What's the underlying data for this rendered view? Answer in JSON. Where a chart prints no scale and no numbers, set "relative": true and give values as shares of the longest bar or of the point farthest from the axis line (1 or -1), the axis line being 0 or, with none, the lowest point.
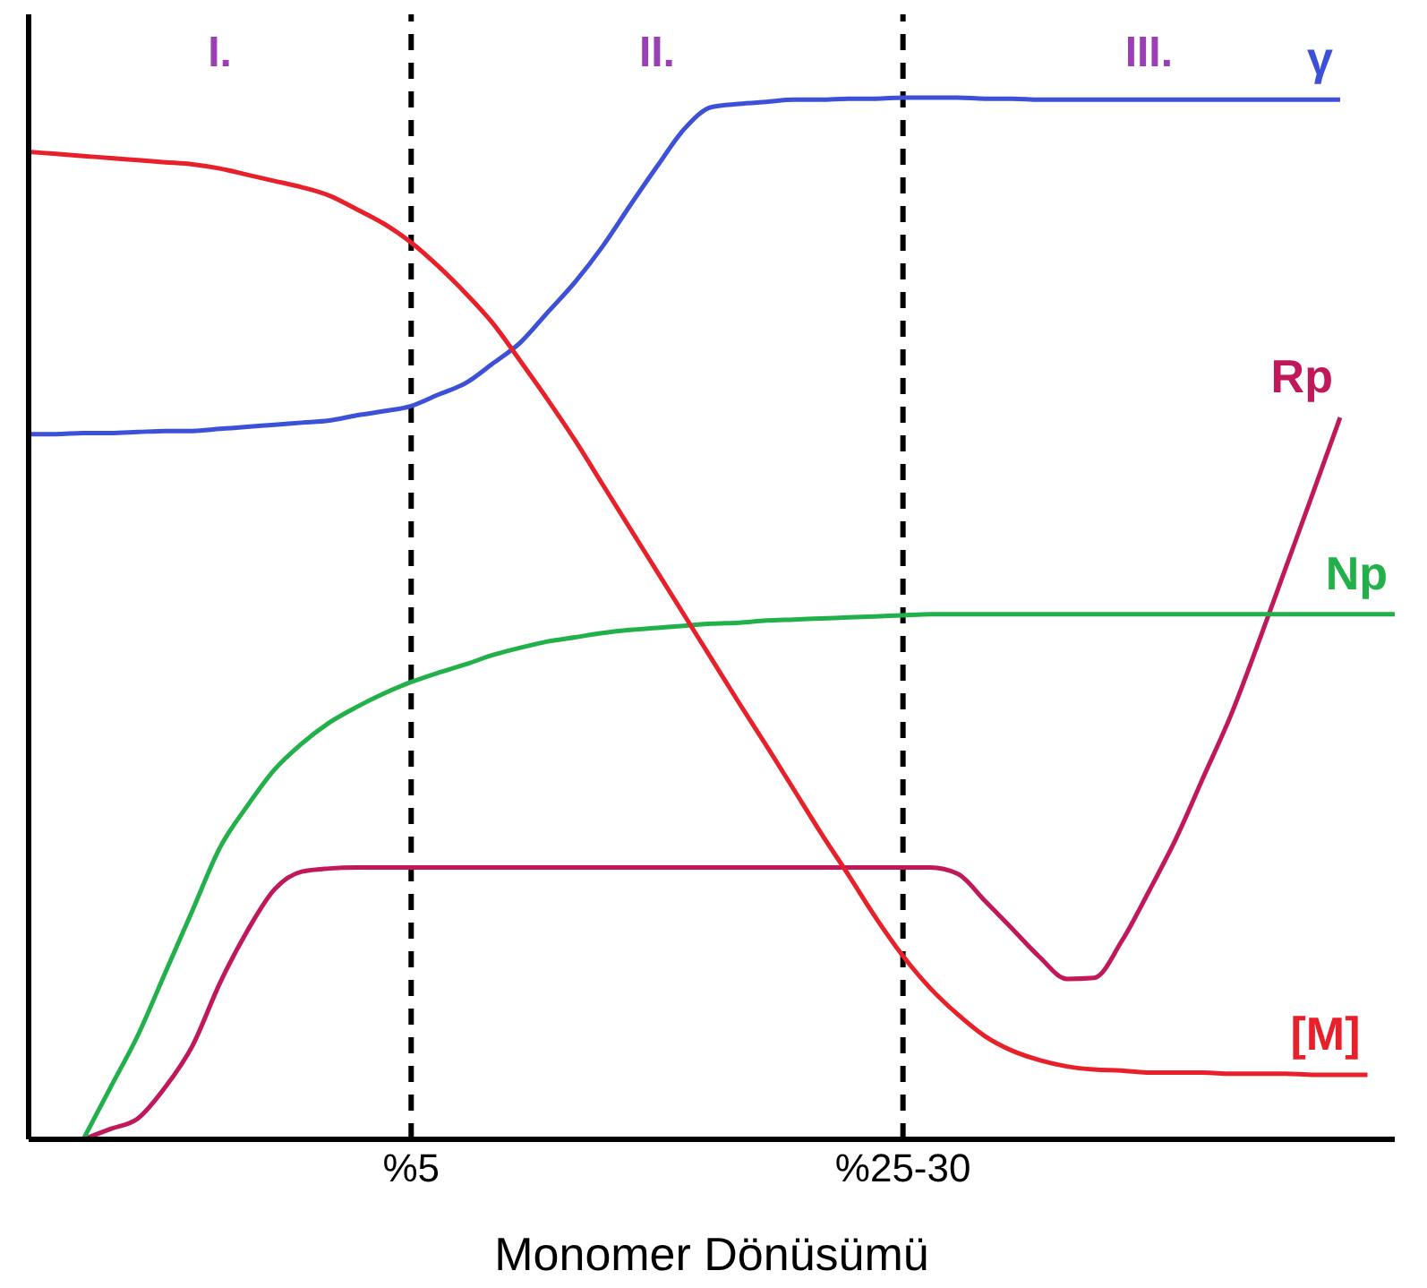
{
  "chart_data": {
    "type": "line",
    "relative": true,
    "xlabel": "Monomer Dönüsümü",
    "categories": [
      null,
      null,
      null,
      null,
      null,
      null,
      null,
      null,
      null,
      null,
      null,
      null,
      null,
      null,
      "%5",
      null,
      null,
      null,
      null,
      null,
      null,
      null,
      null,
      null,
      null,
      null,
      null,
      null,
      null,
      null,
      null,
      null,
      "%25-30",
      null,
      null,
      null,
      null,
      null,
      null,
      null,
      null,
      null,
      null,
      null,
      null,
      null,
      null,
      null,
      null,
      null,
      null
    ],
    "annotations": [
      "I.",
      "II.",
      "III."
    ],
    "ref_lines": [
      {
        "axis": "x",
        "value": "%5",
        "color": "#000000",
        "line_style": "dashed"
      },
      {
        "axis": "x",
        "value": "%25-30",
        "color": "#000000",
        "line_style": "dashed"
      }
    ],
    "grid": false,
    "legend": false,
    "marker": "none",
    "line_style": "solid",
    "series": [
      {
        "name": "γ",
        "color": "#3c50d8",
        "values": [
          0.677,
          0.677,
          0.678,
          0.678,
          0.679,
          0.68,
          0.68,
          0.682,
          0.684,
          0.686,
          0.688,
          0.69,
          0.695,
          0.699,
          0.704,
          0.715,
          0.726,
          0.745,
          0.765,
          0.794,
          0.823,
          0.857,
          0.896,
          0.934,
          0.97,
          0.991,
          0.994,
          0.996,
          0.998,
          0.998,
          0.999,
          0.999,
          1,
          1,
          1,
          0.999,
          0.999,
          0.998,
          0.998,
          0.998,
          0.998,
          0.998,
          0.998,
          0.998,
          0.998,
          0.998,
          0.998,
          0.998,
          0.998,
          null,
          null
        ]
      },
      {
        "name": "Rp",
        "color": "#c0185a",
        "values": [
          null,
          null,
          0,
          0.01,
          0.02,
          0.05,
          0.09,
          0.15,
          0.2,
          0.24,
          0.257,
          0.26,
          0.261,
          0.261,
          0.261,
          0.261,
          0.261,
          0.261,
          0.261,
          0.261,
          0.261,
          0.261,
          0.261,
          0.261,
          0.261,
          0.261,
          0.261,
          0.261,
          0.261,
          0.261,
          0.261,
          0.261,
          0.261,
          0.261,
          0.255,
          0.229,
          0.202,
          0.175,
          0.154,
          0.155,
          0.19,
          0.238,
          0.289,
          0.348,
          0.407,
          0.476,
          0.548,
          0.62,
          0.693,
          null,
          null
        ]
      },
      {
        "name": "Np",
        "color": "#22b04a",
        "values": [
          null,
          null,
          0,
          0.05,
          0.1,
          0.16,
          0.22,
          0.28,
          0.32,
          0.355,
          0.38,
          0.4,
          0.415,
          0.428,
          0.439,
          0.448,
          0.456,
          0.465,
          0.472,
          0.478,
          0.482,
          0.486,
          0.489,
          0.491,
          0.493,
          0.495,
          0.496,
          0.498,
          0.499,
          0.5,
          0.501,
          0.502,
          0.503,
          0.504,
          0.504,
          0.504,
          0.504,
          0.504,
          0.504,
          0.504,
          0.504,
          0.504,
          0.504,
          0.504,
          0.504,
          0.504,
          0.504,
          0.504,
          0.504,
          0.504,
          0.504
        ]
      },
      {
        "name": "[M]",
        "color": "#e8202a",
        "values": [
          0.948,
          0.946,
          0.944,
          0.942,
          0.94,
          0.938,
          0.936,
          0.932,
          0.926,
          0.92,
          0.914,
          0.906,
          0.893,
          0.879,
          0.861,
          0.838,
          0.812,
          0.783,
          0.747,
          0.71,
          0.671,
          0.629,
          0.587,
          0.545,
          0.503,
          0.461,
          0.419,
          0.378,
          0.336,
          0.294,
          0.254,
          0.213,
          0.176,
          0.145,
          0.12,
          0.099,
          0.085,
          0.076,
          0.07,
          0.067,
          0.066,
          0.064,
          0.064,
          0.064,
          0.063,
          0.063,
          0.063,
          0.062,
          0.062,
          0.062,
          null
        ]
      }
    ]
  }
}
